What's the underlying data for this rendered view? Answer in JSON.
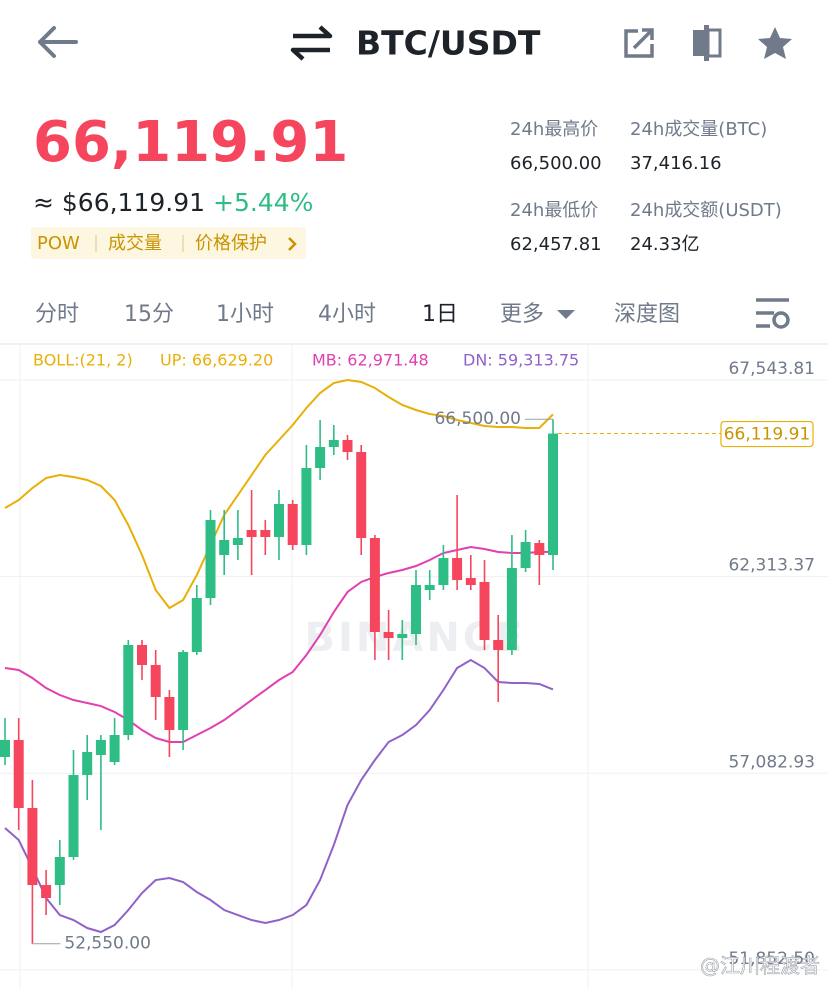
{
  "header": {
    "title": "BTC/USDT"
  },
  "price": {
    "last": "66,119.91",
    "approx": "≈ $66,119.91",
    "change": "+5.44%",
    "tags": [
      "POW",
      "成交量",
      "价格保护"
    ]
  },
  "stats": [
    {
      "label": "24h最高价",
      "value": "66,500.00"
    },
    {
      "label": "24h成交量(BTC)",
      "value": "37,416.16"
    },
    {
      "label": "24h最低价",
      "value": "62,457.81"
    },
    {
      "label": "24h成交额(USDT)",
      "value": "24.33亿"
    }
  ],
  "tabs": [
    "分时",
    "15分",
    "1小时",
    "4小时",
    "1日",
    "更多",
    "深度图"
  ],
  "active_tab": "1日",
  "watermark": "BINANCE",
  "credit": "@江川程渡者",
  "chart_data": {
    "type": "candlestick",
    "indicator": "BOLL:(21, 2)",
    "indicator_color": "#e8b007",
    "up_color": "#2ebd85",
    "down_color": "#f6465d",
    "ylim": [
      51345,
      68475
    ],
    "yticks": [
      {
        "value": 67543.81,
        "label": "67,543.81"
      },
      {
        "value": 62313.37,
        "label": "62,313.37"
      },
      {
        "value": 57082.93,
        "label": "57,082.93"
      },
      {
        "value": 51852.5,
        "label": "51,852.50"
      }
    ],
    "grid": true,
    "open": [
      57516,
      57968,
      56159,
      54111,
      54111,
      54856,
      57037,
      57569,
      57383,
      58101,
      60495,
      59963,
      59112,
      58234,
      60309,
      61745,
      62889,
      63155,
      63554,
      63554,
      63368,
      64246,
      63155,
      65203,
      65762,
      65948,
      65629,
      63341,
      60841,
      60681,
      60788,
      61958,
      62091,
      62809,
      62277,
      62171,
      60628,
      60362,
      62543,
      63208,
      62889
    ],
    "high": [
      58553,
      58553,
      56904,
      54510,
      55308,
      57702,
      58101,
      58101,
      58553,
      60628,
      60628,
      60362,
      59298,
      60362,
      62091,
      64086,
      64086,
      64086,
      64618,
      63820,
      64618,
      64352,
      65815,
      66480,
      66347,
      66081,
      65815,
      63421,
      61426,
      61160,
      62490,
      62490,
      63155,
      64485,
      62889,
      62756,
      61293,
      63421,
      63554,
      63288,
      66500
    ],
    "low": [
      57303,
      55574,
      52550,
      53313,
      53579,
      54776,
      56372,
      55574,
      57303,
      57968,
      59564,
      58500,
      57516,
      57702,
      60229,
      61559,
      62357,
      62756,
      62357,
      62889,
      62756,
      63022,
      62889,
      64884,
      65549,
      65416,
      62889,
      60096,
      60096,
      60096,
      60495,
      61692,
      61958,
      61958,
      61958,
      60362,
      58979,
      60229,
      62437,
      62091,
      62490
    ],
    "close": [
      57968,
      56159,
      54111,
      53765,
      54856,
      57037,
      57649,
      57968,
      58101,
      60495,
      59963,
      59112,
      58234,
      60309,
      61745,
      63820,
      63288,
      63341,
      63368,
      63368,
      64246,
      63155,
      65203,
      65762,
      65948,
      65629,
      63341,
      60841,
      60681,
      60788,
      62091,
      62091,
      62809,
      62224,
      62091,
      60628,
      60362,
      62543,
      63235,
      62889,
      66119.91
    ],
    "series": [
      {
        "name": "UP: 66,629.20",
        "color": "#e8b007",
        "values": [
          64139,
          64352,
          64671,
          64937,
          65017,
          64964,
          64884,
          64724,
          64352,
          63687,
          62889,
          61958,
          61479,
          61692,
          62357,
          63155,
          63953,
          64485,
          65017,
          65549,
          65948,
          66347,
          66799,
          67198,
          67464,
          67544,
          67491,
          67331,
          67092,
          66879,
          66746,
          66640,
          66586,
          66480,
          66400,
          66320,
          66294,
          66294,
          66267,
          66267,
          66629.2
        ]
      },
      {
        "name": "MB: 62,971.48",
        "color": "#e040b0",
        "values": [
          59883,
          59830,
          59617,
          59351,
          59165,
          59032,
          58952,
          58872,
          58713,
          58500,
          58234,
          58021,
          57915,
          57915,
          58101,
          58287,
          58500,
          58766,
          59032,
          59298,
          59564,
          59777,
          60229,
          60761,
          61373,
          61905,
          62171,
          62304,
          62410,
          62490,
          62596,
          62756,
          62942,
          63022,
          63102,
          63049,
          62969,
          62942,
          62942,
          62969,
          62971.48
        ]
      },
      {
        "name": "DN: 59,313.75",
        "color": "#8e62c8",
        "values": [
          55627,
          55308,
          54563,
          53765,
          53313,
          53180,
          52967,
          52861,
          53047,
          53446,
          53898,
          54244,
          54297,
          54191,
          53925,
          53712,
          53446,
          53313,
          53180,
          53100,
          53180,
          53313,
          53579,
          54244,
          55175,
          56239,
          56904,
          57436,
          57915,
          58101,
          58367,
          58766,
          59298,
          59883,
          60096,
          59883,
          59511,
          59484,
          59484,
          59458,
          59313.75
        ]
      }
    ],
    "annotations": [
      {
        "value": 66500,
        "label": "66,500.00",
        "index": 40,
        "side": "left"
      },
      {
        "value": 52550,
        "label": "52,550.00",
        "index": 2,
        "side": "right"
      }
    ],
    "last_price": {
      "value": 66119.91,
      "label": "66,119.91",
      "color": "#e8b007"
    }
  }
}
